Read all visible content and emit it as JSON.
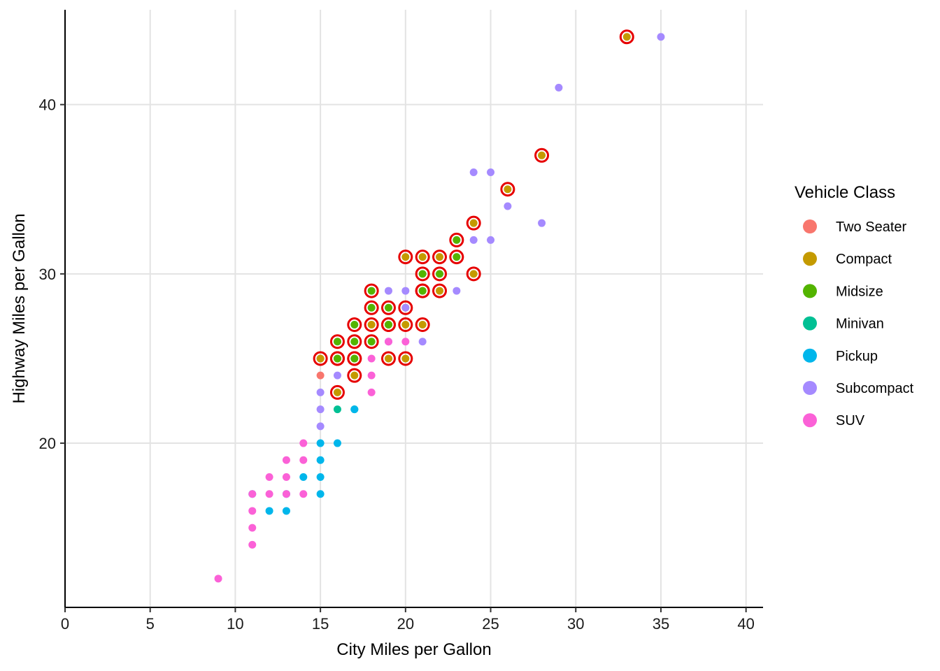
{
  "chart_data": {
    "type": "scatter",
    "title": "",
    "xlabel": "City Miles per Gallon",
    "ylabel": "Highway Miles per Gallon",
    "xlim": [
      0,
      41
    ],
    "ylim": [
      10.3,
      45.6
    ],
    "x_ticks": [
      0,
      5,
      10,
      15,
      20,
      25,
      30,
      35,
      40
    ],
    "y_ticks": [
      20,
      30,
      40
    ],
    "grid": true,
    "legend": {
      "title": "Vehicle Class",
      "placement": "right"
    },
    "highlight": {
      "description": "compact and midsize cars ringed in red",
      "color": "#e60000"
    },
    "series": [
      {
        "name": "Two Seater",
        "color": "#F8766D",
        "points": [
          [
            15,
            25
          ],
          [
            15,
            24
          ]
        ]
      },
      {
        "name": "Compact",
        "color": "#C49A00",
        "points": [
          [
            33,
            44
          ],
          [
            28,
            37
          ],
          [
            26,
            35
          ],
          [
            24,
            33
          ],
          [
            24,
            30
          ],
          [
            22,
            31
          ],
          [
            21,
            31
          ],
          [
            20,
            31
          ],
          [
            22,
            29
          ],
          [
            21,
            29
          ],
          [
            21,
            27
          ],
          [
            20,
            27
          ],
          [
            20,
            25
          ],
          [
            20,
            28
          ],
          [
            19,
            27
          ],
          [
            19,
            25
          ],
          [
            18,
            27
          ],
          [
            17,
            25
          ],
          [
            17,
            24
          ],
          [
            16,
            25
          ],
          [
            16,
            23
          ],
          [
            15,
            25
          ]
        ]
      },
      {
        "name": "Midsize",
        "color": "#53B400",
        "points": [
          [
            23,
            32
          ],
          [
            23,
            31
          ],
          [
            22,
            30
          ],
          [
            21,
            30
          ],
          [
            21,
            29
          ],
          [
            19,
            28
          ],
          [
            18,
            28
          ],
          [
            18,
            29
          ],
          [
            19,
            27
          ],
          [
            18,
            26
          ],
          [
            17,
            27
          ],
          [
            17,
            26
          ],
          [
            17,
            25
          ],
          [
            16,
            26
          ],
          [
            16,
            25
          ]
        ]
      },
      {
        "name": "Minivan",
        "color": "#00C094",
        "points": [
          [
            16,
            22
          ],
          [
            17,
            22
          ]
        ]
      },
      {
        "name": "Pickup",
        "color": "#00B6EB",
        "points": [
          [
            17,
            22
          ],
          [
            16,
            20
          ],
          [
            15,
            20
          ],
          [
            15,
            19
          ],
          [
            15,
            18
          ],
          [
            15,
            17
          ],
          [
            14,
            18
          ],
          [
            13,
            17
          ],
          [
            13,
            16
          ],
          [
            12,
            16
          ],
          [
            11,
            17
          ]
        ]
      },
      {
        "name": "Subcompact",
        "color": "#A58AFF",
        "points": [
          [
            35,
            44
          ],
          [
            29,
            41
          ],
          [
            24,
            36
          ],
          [
            25,
            36
          ],
          [
            26,
            34
          ],
          [
            28,
            33
          ],
          [
            24,
            32
          ],
          [
            25,
            32
          ],
          [
            23,
            29
          ],
          [
            19,
            29
          ],
          [
            20,
            29
          ],
          [
            19,
            26
          ],
          [
            20,
            28
          ],
          [
            21,
            26
          ],
          [
            16,
            24
          ],
          [
            15,
            23
          ],
          [
            15,
            22
          ],
          [
            15,
            21
          ]
        ]
      },
      {
        "name": "SUV",
        "color": "#FB61D7",
        "points": [
          [
            20,
            26
          ],
          [
            19,
            26
          ],
          [
            18,
            25
          ],
          [
            18,
            24
          ],
          [
            18,
            23
          ],
          [
            14,
            20
          ],
          [
            14,
            19
          ],
          [
            13,
            19
          ],
          [
            14,
            17
          ],
          [
            13,
            18
          ],
          [
            12,
            18
          ],
          [
            12,
            17
          ],
          [
            11,
            17
          ],
          [
            13,
            17
          ],
          [
            11,
            16
          ],
          [
            11,
            15
          ],
          [
            11,
            14
          ],
          [
            9,
            12
          ]
        ]
      }
    ]
  }
}
